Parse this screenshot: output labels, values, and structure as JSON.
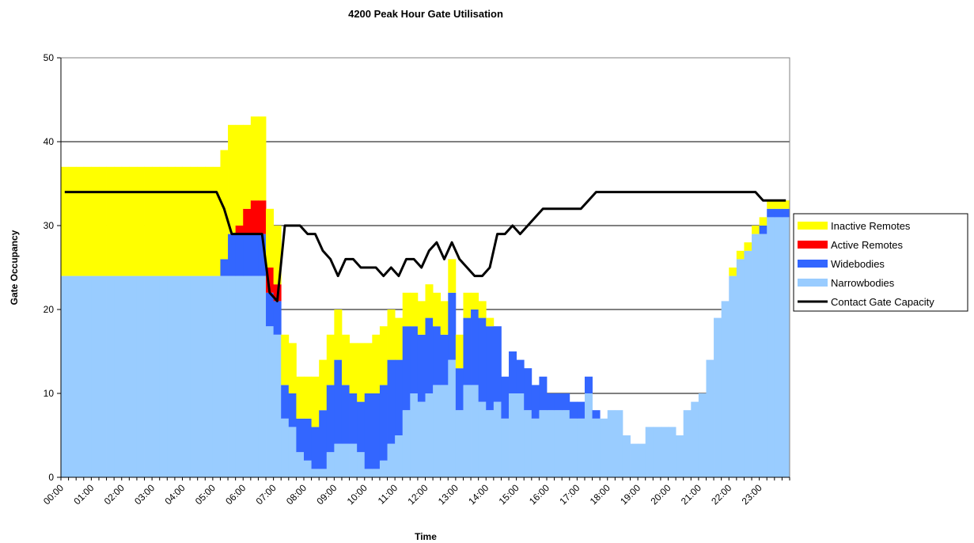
{
  "chart_data": {
    "type": "bar",
    "title": "4200 Peak Hour Gate Utilisation",
    "x_label": "Time",
    "y_label": "Gate Occupancy",
    "ylim": [
      0,
      50
    ],
    "yticks": [
      0,
      10,
      20,
      30,
      40,
      50
    ],
    "grid": true,
    "legend": "right",
    "stacked": true,
    "categories": [
      "00:00",
      null,
      null,
      null,
      "01:00",
      null,
      null,
      null,
      "02:00",
      null,
      null,
      null,
      "03:00",
      null,
      null,
      null,
      "04:00",
      null,
      null,
      null,
      "05:00",
      null,
      null,
      null,
      "06:00",
      null,
      null,
      null,
      "07:00",
      null,
      null,
      null,
      "08:00",
      null,
      null,
      null,
      "09:00",
      null,
      null,
      null,
      "10:00",
      null,
      null,
      null,
      "11:00",
      null,
      null,
      null,
      "12:00",
      null,
      null,
      null,
      "13:00",
      null,
      null,
      null,
      "14:00",
      null,
      null,
      null,
      "15:00",
      null,
      null,
      null,
      "16:00",
      null,
      null,
      null,
      "17:00",
      null,
      null,
      null,
      "18:00",
      null,
      null,
      null,
      "19:00",
      null,
      null,
      null,
      "20:00",
      null,
      null,
      null,
      "21:00",
      null,
      null,
      null,
      "22:00",
      null,
      null,
      null,
      "23:00",
      null,
      null,
      null
    ],
    "series": [
      {
        "name": "Inactive Remotes",
        "color": "#ffff00",
        "type": "bar",
        "values": [
          13,
          13,
          13,
          13,
          13,
          13,
          13,
          13,
          13,
          13,
          13,
          13,
          13,
          13,
          13,
          13,
          13,
          13,
          13,
          13,
          13,
          13,
          13,
          12,
          10,
          10,
          10,
          7,
          7,
          6,
          6,
          5,
          5,
          6,
          6,
          6,
          6,
          6,
          6,
          7,
          6,
          7,
          7,
          6,
          5,
          4,
          4,
          4,
          4,
          4,
          4,
          4,
          4,
          3,
          2,
          2,
          1,
          0,
          0,
          0,
          0,
          0,
          0,
          0,
          0,
          0,
          0,
          0,
          0,
          0,
          0,
          0,
          0,
          0,
          0,
          0,
          0,
          0,
          0,
          0,
          0,
          0,
          0,
          0,
          0,
          0,
          0,
          0,
          1,
          1,
          1,
          1,
          1,
          1,
          1,
          1
        ]
      },
      {
        "name": "Active Remotes",
        "color": "#ff0000",
        "type": "bar",
        "values": [
          0,
          0,
          0,
          0,
          0,
          0,
          0,
          0,
          0,
          0,
          0,
          0,
          0,
          0,
          0,
          0,
          0,
          0,
          0,
          0,
          0,
          0,
          0,
          1,
          3,
          4,
          4,
          3,
          2,
          0,
          0,
          0,
          0,
          0,
          0,
          0,
          0,
          0,
          0,
          0,
          0,
          0,
          0,
          0,
          0,
          0,
          0,
          0,
          0,
          0,
          0,
          0,
          0,
          0,
          0,
          0,
          0,
          0,
          0,
          0,
          0,
          0,
          0,
          0,
          0,
          0,
          0,
          0,
          0,
          0,
          0,
          0,
          0,
          0,
          0,
          0,
          0,
          0,
          0,
          0,
          0,
          0,
          0,
          0,
          0,
          0,
          0,
          0,
          0,
          0,
          0,
          0,
          0,
          0,
          0,
          0
        ]
      },
      {
        "name": "Widebodies",
        "color": "#3366ff",
        "type": "bar",
        "values": [
          0,
          0,
          0,
          0,
          0,
          0,
          0,
          0,
          0,
          0,
          0,
          0,
          0,
          0,
          0,
          0,
          0,
          0,
          0,
          0,
          0,
          2,
          5,
          5,
          5,
          5,
          5,
          4,
          4,
          4,
          4,
          4,
          5,
          5,
          7,
          8,
          10,
          7,
          6,
          6,
          9,
          9,
          9,
          10,
          9,
          10,
          8,
          8,
          9,
          7,
          6,
          8,
          5,
          8,
          9,
          10,
          10,
          9,
          5,
          5,
          4,
          5,
          4,
          4,
          2,
          2,
          2,
          2,
          2,
          2,
          1,
          0,
          0,
          0,
          0,
          0,
          0,
          0,
          0,
          0,
          0,
          0,
          0,
          0,
          0,
          0,
          0,
          0,
          0,
          0,
          0,
          0,
          1,
          1,
          1,
          1
        ]
      },
      {
        "name": "Narrowbodies",
        "color": "#99ccff",
        "type": "bar",
        "values": [
          24,
          24,
          24,
          24,
          24,
          24,
          24,
          24,
          24,
          24,
          24,
          24,
          24,
          24,
          24,
          24,
          24,
          24,
          24,
          24,
          24,
          24,
          24,
          24,
          24,
          24,
          24,
          18,
          17,
          7,
          6,
          3,
          2,
          1,
          1,
          3,
          4,
          4,
          4,
          3,
          1,
          1,
          2,
          4,
          5,
          8,
          10,
          9,
          10,
          11,
          11,
          14,
          8,
          11,
          11,
          9,
          8,
          9,
          7,
          10,
          10,
          8,
          7,
          8,
          8,
          8,
          8,
          7,
          7,
          10,
          7,
          7,
          8,
          8,
          5,
          4,
          4,
          6,
          6,
          6,
          6,
          5,
          8,
          9,
          10,
          14,
          19,
          21,
          24,
          26,
          27,
          29,
          29,
          31,
          31,
          31
        ]
      },
      {
        "name": "Contact Gate Capacity",
        "color": "#000000",
        "type": "line",
        "values": [
          34,
          34,
          34,
          34,
          34,
          34,
          34,
          34,
          34,
          34,
          34,
          34,
          34,
          34,
          34,
          34,
          34,
          34,
          34,
          34,
          34,
          32,
          29,
          29,
          29,
          29,
          29,
          22,
          21,
          30,
          30,
          30,
          29,
          29,
          27,
          26,
          24,
          26,
          26,
          25,
          25,
          25,
          24,
          25,
          24,
          26,
          26,
          25,
          27,
          28,
          26,
          28,
          26,
          25,
          24,
          24,
          25,
          29,
          29,
          30,
          29,
          30,
          31,
          32,
          32,
          32,
          32,
          32,
          32,
          33,
          34,
          34,
          34,
          34,
          34,
          34,
          34,
          34,
          34,
          34,
          34,
          34,
          34,
          34,
          34,
          34,
          34,
          34,
          34,
          34,
          34,
          34,
          33,
          33,
          33,
          33
        ]
      }
    ]
  }
}
